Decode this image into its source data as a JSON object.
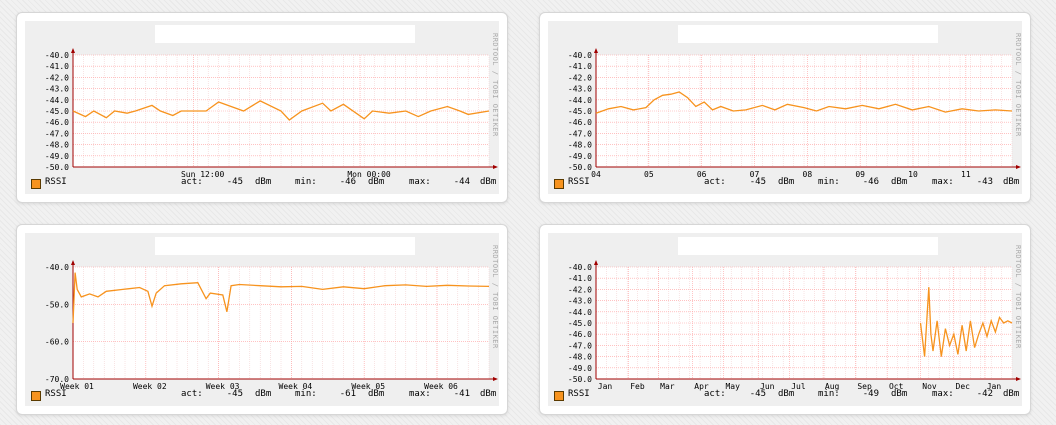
{
  "colors": {
    "series": "#f7931e",
    "grid_major": "#ff9f9f",
    "grid_minor": "#f0c8c8",
    "axis": "#a00000"
  },
  "graphs": [
    {
      "side_text": "RRDTOOL / TOBI OETIKER",
      "legend": "RSSI",
      "stats": {
        "act_label": "act:",
        "act": "-45",
        "min_label": "min:",
        "min": "-46",
        "max_label": "max:",
        "max": "-44",
        "unit": "dBm"
      }
    },
    {
      "side_text": "RRDTOOL / TOBI OETIKER",
      "legend": "RSSI",
      "stats": {
        "act_label": "act:",
        "act": "-45",
        "min_label": "min:",
        "min": "-46",
        "max_label": "max:",
        "max": "-43",
        "unit": "dBm"
      }
    },
    {
      "side_text": "RRDTOOL / TOBI OETIKER",
      "legend": "RSSI",
      "stats": {
        "act_label": "act:",
        "act": "-45",
        "min_label": "min:",
        "min": "-61",
        "max_label": "max:",
        "max": "-41",
        "unit": "dBm"
      }
    },
    {
      "side_text": "RRDTOOL / TOBI OETIKER",
      "legend": "RSSI",
      "stats": {
        "act_label": "act:",
        "act": "-45",
        "min_label": "min:",
        "min": "-49",
        "max_label": "max:",
        "max": "-42",
        "unit": "dBm"
      }
    }
  ],
  "chart_data": [
    {
      "type": "line",
      "ylim": [
        -50,
        -40
      ],
      "y_ticks": [
        "-40.0",
        "-41.0",
        "-42.0",
        "-43.0",
        "-44.0",
        "-45.0",
        "-46.0",
        "-47.0",
        "-48.0",
        "-49.0",
        "-50.0"
      ],
      "x_tick_labels": [
        "Sun 12:00",
        "Mon 00:00"
      ],
      "x_tick_pos": [
        0.29,
        0.69
      ],
      "grid": true,
      "series": [
        {
          "name": "RSSI",
          "x": [
            0,
            0.03,
            0.05,
            0.08,
            0.1,
            0.13,
            0.15,
            0.19,
            0.21,
            0.24,
            0.26,
            0.32,
            0.35,
            0.41,
            0.45,
            0.5,
            0.52,
            0.55,
            0.6,
            0.62,
            0.65,
            0.7,
            0.72,
            0.76,
            0.8,
            0.83,
            0.86,
            0.9,
            0.93,
            0.95,
            1.0
          ],
          "y": [
            -45,
            -45.5,
            -45,
            -45.6,
            -45,
            -45.2,
            -45,
            -44.5,
            -45,
            -45.4,
            -45,
            -45,
            -44.2,
            -45,
            -44.1,
            -45,
            -45.8,
            -45,
            -44.3,
            -45,
            -44.4,
            -45.7,
            -45,
            -45.2,
            -45,
            -45.5,
            -45,
            -44.6,
            -45,
            -45.3,
            -45
          ]
        }
      ]
    },
    {
      "type": "line",
      "ylim": [
        -50,
        -40
      ],
      "y_ticks": [
        "-40.0",
        "-41.0",
        "-42.0",
        "-43.0",
        "-44.0",
        "-45.0",
        "-46.0",
        "-47.0",
        "-48.0",
        "-49.0",
        "-50.0"
      ],
      "x_tick_labels": [
        "04",
        "05",
        "06",
        "07",
        "08",
        "09",
        "10",
        "11"
      ],
      "x_tick_pos": [
        0,
        0.127,
        0.254,
        0.381,
        0.508,
        0.635,
        0.762,
        0.889
      ],
      "grid": true,
      "series": [
        {
          "name": "RSSI",
          "x": [
            0,
            0.03,
            0.06,
            0.09,
            0.12,
            0.14,
            0.16,
            0.18,
            0.2,
            0.22,
            0.24,
            0.26,
            0.28,
            0.3,
            0.33,
            0.36,
            0.4,
            0.43,
            0.46,
            0.5,
            0.53,
            0.56,
            0.6,
            0.64,
            0.68,
            0.72,
            0.76,
            0.8,
            0.84,
            0.88,
            0.92,
            0.96,
            1.0
          ],
          "y": [
            -45.2,
            -44.8,
            -44.6,
            -44.9,
            -44.7,
            -44,
            -43.6,
            -43.5,
            -43.3,
            -43.8,
            -44.6,
            -44.2,
            -44.9,
            -44.6,
            -45,
            -44.9,
            -44.5,
            -44.9,
            -44.4,
            -44.7,
            -45,
            -44.6,
            -44.8,
            -44.5,
            -44.8,
            -44.4,
            -44.9,
            -44.6,
            -45.1,
            -44.8,
            -45,
            -44.9,
            -45
          ]
        }
      ]
    },
    {
      "type": "line",
      "ylim": [
        -70,
        -40
      ],
      "y_ticks": [
        "-40.0",
        "-50.0",
        "-60.0",
        "-70.0"
      ],
      "x_tick_labels": [
        "Week 01",
        "Week 02",
        "Week 03",
        "Week 04",
        "Week 05",
        "Week 06"
      ],
      "x_tick_pos": [
        0,
        0.175,
        0.35,
        0.525,
        0.7,
        0.875
      ],
      "grid": true,
      "series": [
        {
          "name": "RSSI",
          "x": [
            0,
            0.005,
            0.01,
            0.02,
            0.04,
            0.06,
            0.08,
            0.12,
            0.16,
            0.18,
            0.19,
            0.2,
            0.22,
            0.26,
            0.3,
            0.32,
            0.33,
            0.36,
            0.37,
            0.38,
            0.4,
            0.45,
            0.5,
            0.55,
            0.6,
            0.65,
            0.7,
            0.75,
            0.8,
            0.85,
            0.9,
            0.95,
            1.0
          ],
          "y": [
            -55,
            -41.5,
            -46,
            -48,
            -47.2,
            -48,
            -46.5,
            -46,
            -45.5,
            -46.5,
            -50.5,
            -47,
            -45,
            -44.5,
            -44.2,
            -48.5,
            -47,
            -47.5,
            -52,
            -45,
            -44.7,
            -45,
            -45.3,
            -45.2,
            -46,
            -45.3,
            -45.8,
            -45,
            -44.8,
            -45.2,
            -44.9,
            -45.1,
            -45.2
          ]
        }
      ]
    },
    {
      "type": "line",
      "ylim": [
        -50,
        -40
      ],
      "y_ticks": [
        "-40.0",
        "-41.0",
        "-42.0",
        "-43.0",
        "-44.0",
        "-45.0",
        "-46.0",
        "-47.0",
        "-48.0",
        "-49.0",
        "-50.0"
      ],
      "x_tick_labels": [
        "Jan",
        "Feb",
        "Mar",
        "Apr",
        "May",
        "Jun",
        "Jul",
        "Aug",
        "Sep",
        "Oct",
        "Nov",
        "Dec",
        "Jan"
      ],
      "x_tick_pos": [
        0.0,
        0.078,
        0.15,
        0.232,
        0.307,
        0.39,
        0.465,
        0.546,
        0.624,
        0.7,
        0.78,
        0.86,
        0.935
      ],
      "grid": true,
      "series": [
        {
          "name": "RSSI",
          "x": [
            0.78,
            0.79,
            0.8,
            0.805,
            0.81,
            0.82,
            0.83,
            0.84,
            0.85,
            0.86,
            0.87,
            0.88,
            0.89,
            0.9,
            0.91,
            0.92,
            0.93,
            0.94,
            0.95,
            0.96,
            0.97,
            0.98,
            0.99,
            1.0
          ],
          "y": [
            -45,
            -48,
            -41.8,
            -46,
            -47.5,
            -44.8,
            -48,
            -45.5,
            -47,
            -46,
            -47.8,
            -45.2,
            -47.5,
            -44.8,
            -47.2,
            -46,
            -45,
            -46.2,
            -44.8,
            -45.8,
            -44.5,
            -45,
            -44.8,
            -45
          ]
        }
      ]
    }
  ]
}
